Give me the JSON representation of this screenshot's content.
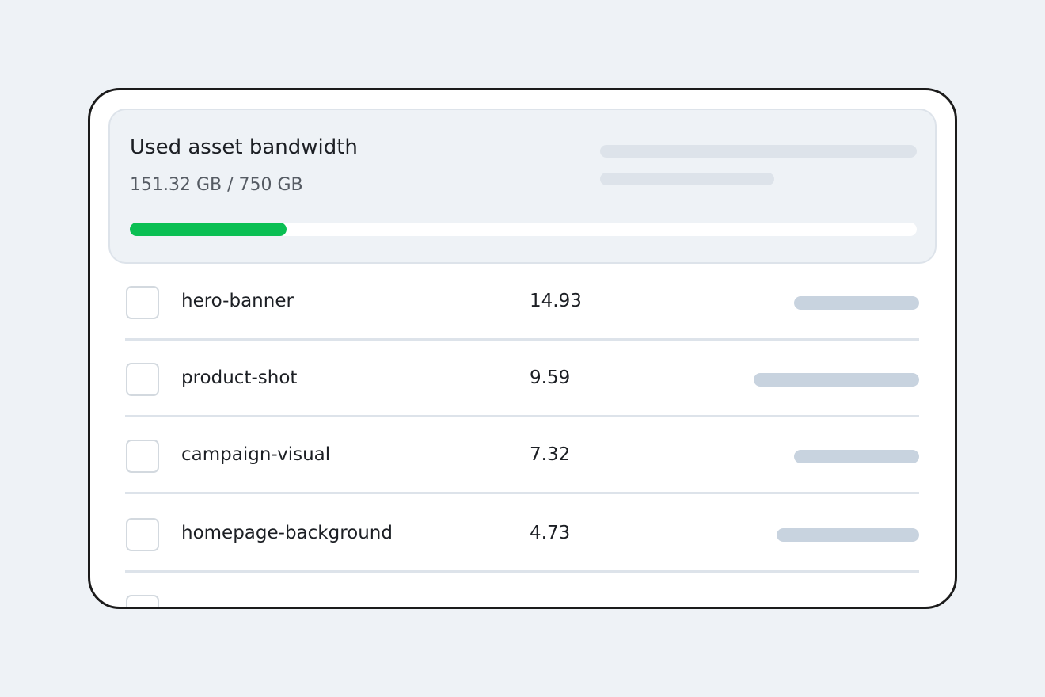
{
  "header": {
    "title": "Used asset bandwidth",
    "usage": "151.32 GB / 750 GB"
  },
  "rows": [
    {
      "name": "hero-banner",
      "value": "14.93"
    },
    {
      "name": "product-shot",
      "value": "9.59"
    },
    {
      "name": "campaign-visual",
      "value": "7.32"
    },
    {
      "name": "homepage-background",
      "value": "4.73"
    }
  ]
}
